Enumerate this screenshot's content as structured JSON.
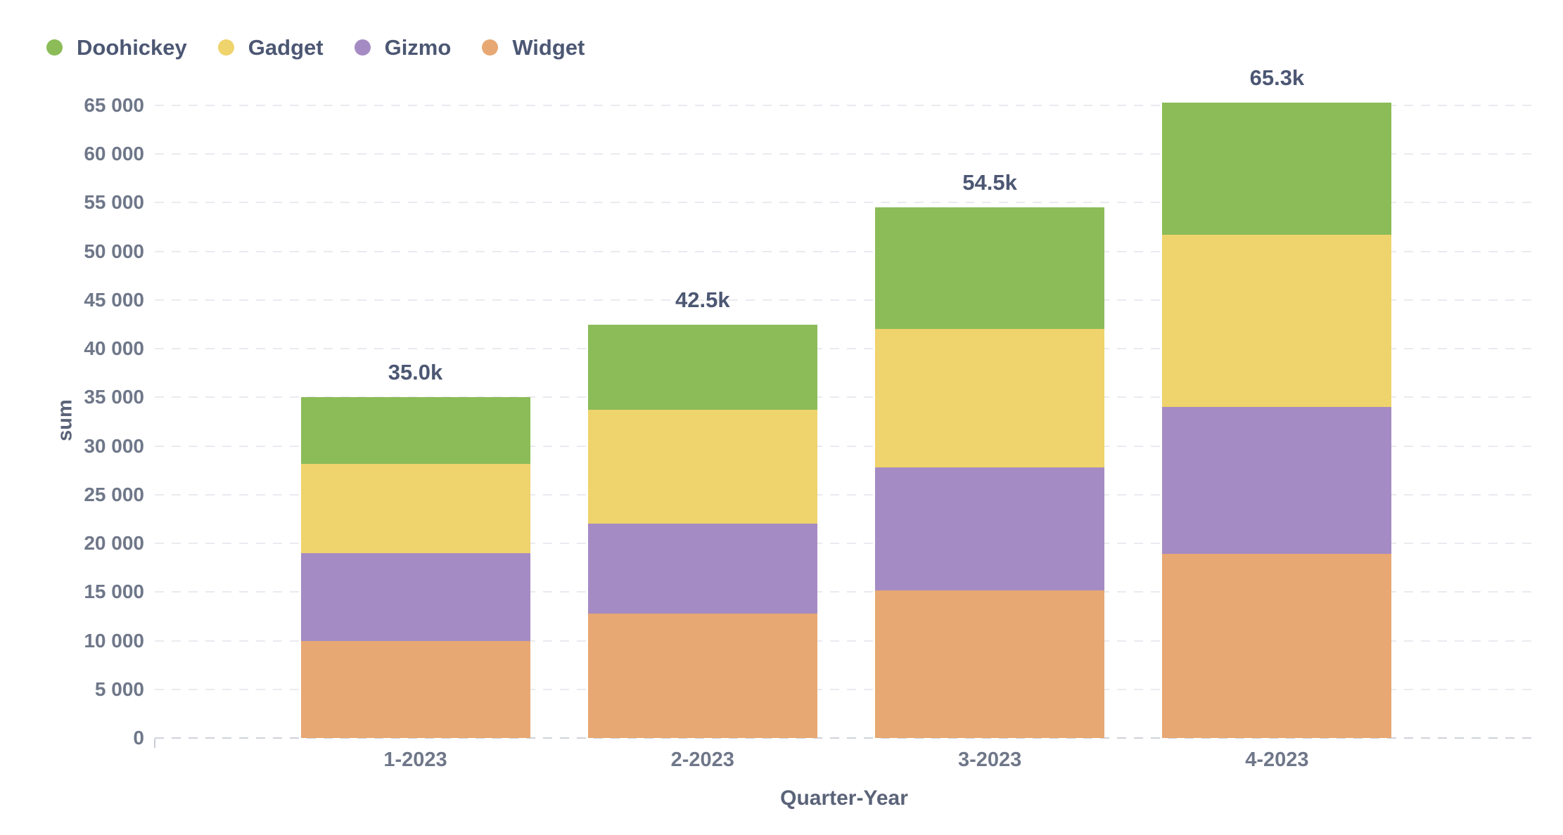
{
  "chart_data": {
    "type": "bar",
    "stacked": true,
    "title": "",
    "xlabel": "Quarter-Year",
    "ylabel": "sum",
    "categories": [
      "1-2023",
      "2-2023",
      "3-2023",
      "4-2023"
    ],
    "series": [
      {
        "name": "Doohickey",
        "color": "#8BBC58",
        "values": [
          6800,
          8800,
          12500,
          13600
        ]
      },
      {
        "name": "Gadget",
        "color": "#EFD36C",
        "values": [
          9200,
          11700,
          14200,
          17700
        ]
      },
      {
        "name": "Gizmo",
        "color": "#A58BC3",
        "values": [
          9000,
          9200,
          12600,
          15100
        ]
      },
      {
        "name": "Widget",
        "color": "#E7A873",
        "values": [
          10000,
          12800,
          15200,
          18900
        ]
      }
    ],
    "stack_order_bottom_to_top": [
      "Widget",
      "Gizmo",
      "Gadget",
      "Doohickey"
    ],
    "totals": [
      35000,
      42500,
      54500,
      65300
    ],
    "total_labels": [
      "35.0k",
      "42.5k",
      "54.5k",
      "65.3k"
    ],
    "ylim": [
      0,
      65000
    ],
    "y_tick_interval": 5000,
    "y_ticks": [
      "0",
      "5 000",
      "10 000",
      "15 000",
      "20 000",
      "25 000",
      "30 000",
      "35 000",
      "40 000",
      "45 000",
      "50 000",
      "55 000",
      "60 000",
      "65 000"
    ],
    "grid": "horizontal-dashed",
    "legend_position": "top-left"
  },
  "colors": {
    "text_dark": "#4C5773",
    "text_muted": "#6F7789",
    "axis_title": "#5A6378",
    "gridline": "#EAEAF0",
    "baseline": "#CFD2DA",
    "background": "#FFFFFF"
  }
}
